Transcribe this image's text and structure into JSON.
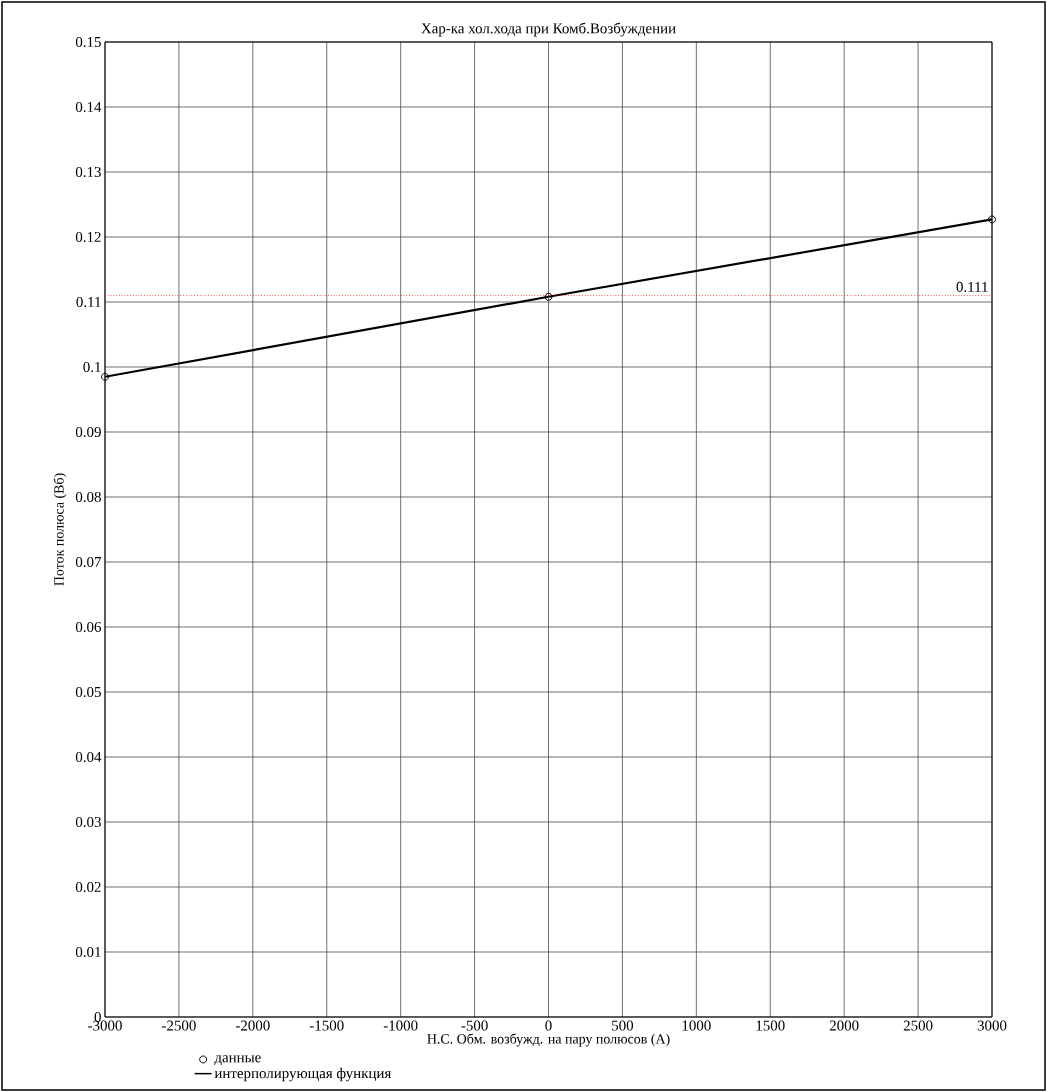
{
  "chart_data": {
    "type": "line",
    "title": "Хар-ка хол.хода при Комб.Возбуждении",
    "xlabel": "Н.С. Обм. возбужд. на пару полюсов (А)",
    "ylabel": "Поток полюса (Вб)",
    "series": [
      {
        "name": "данные",
        "type": "scatter",
        "color": "#000000",
        "marker": "circle",
        "x": [
          -3000,
          0,
          3000
        ],
        "values": [
          0.0985,
          0.1108,
          0.1227
        ]
      },
      {
        "name": "интерполирующая функция",
        "type": "line",
        "color": "#000000",
        "marker": "none",
        "line_style": "solid",
        "x": [
          -3000,
          0,
          3000
        ],
        "values": [
          0.0985,
          0.1108,
          0.1227
        ]
      }
    ],
    "xlim": [
      -3000,
      3000
    ],
    "ylim": [
      0,
      0.15
    ],
    "xticks": [
      -3000,
      -2500,
      -2000,
      -1500,
      -1000,
      -500,
      0,
      500,
      1000,
      1500,
      2000,
      2500,
      3000
    ],
    "yticks": [
      0,
      0.01,
      0.02,
      0.03,
      0.04,
      0.05,
      0.06,
      0.07,
      0.08,
      0.09,
      0.1,
      0.11,
      0.12,
      0.13,
      0.14,
      0.15
    ],
    "ref_lines": [
      {
        "axis": "y",
        "value": 0.111,
        "label": "0.111",
        "color": "#ff0000",
        "line_style": "dotted"
      }
    ],
    "grid": true,
    "legend": "bottom"
  }
}
